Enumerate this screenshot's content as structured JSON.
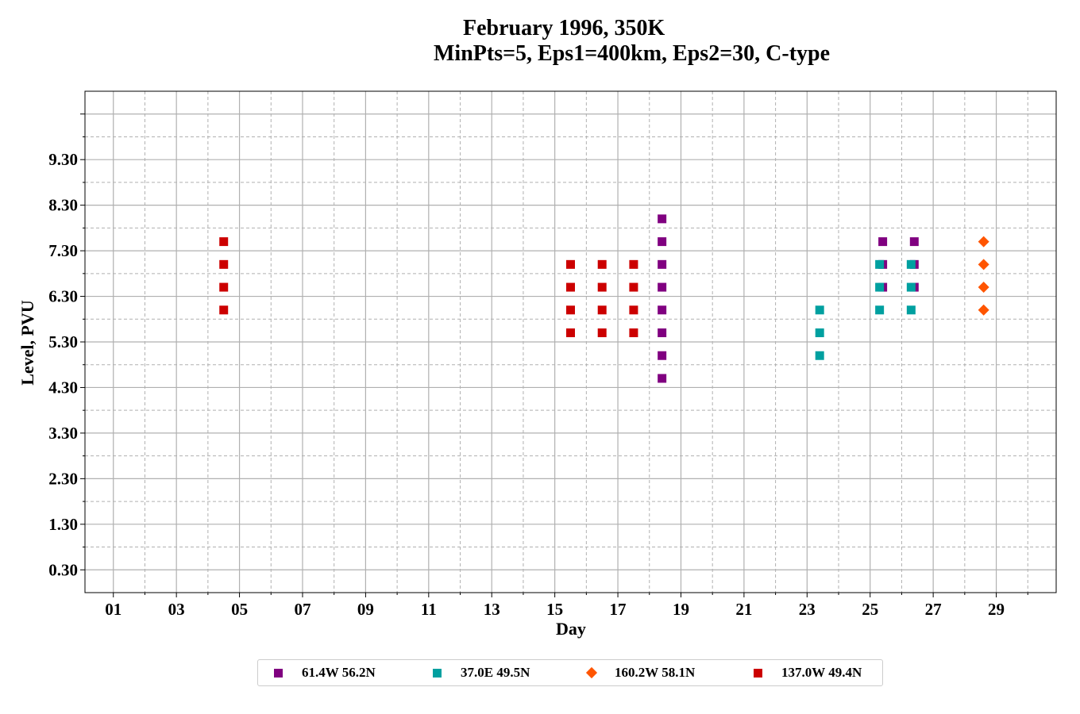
{
  "chart_data": {
    "type": "scatter",
    "title": "February 1996, 350K",
    "subtitle": "MinPts=5, Eps1=400km, Eps2=30, C-type",
    "xlabel": "Day",
    "ylabel": "Level, PVU",
    "xlim": [
      0.1,
      30.9
    ],
    "ylim": [
      -0.2,
      10.8
    ],
    "x_ticks": [
      "01",
      "03",
      "05",
      "07",
      "09",
      "11",
      "13",
      "15",
      "17",
      "19",
      "21",
      "23",
      "25",
      "27",
      "29"
    ],
    "y_ticks": [
      "0.30",
      "1.30",
      "2.30",
      "3.30",
      "4.30",
      "5.30",
      "6.30",
      "7.30",
      "8.30",
      "9.30"
    ],
    "grid": true,
    "legend_position": "bottom",
    "series": [
      {
        "name": "61.4W 56.2N",
        "marker": "square",
        "color": "#800080",
        "points": [
          [
            18.4,
            4.5
          ],
          [
            18.4,
            5.0
          ],
          [
            18.4,
            5.5
          ],
          [
            18.4,
            6.0
          ],
          [
            18.4,
            6.5
          ],
          [
            18.4,
            7.0
          ],
          [
            18.4,
            7.5
          ],
          [
            18.4,
            8.0
          ],
          [
            25.4,
            6.5
          ],
          [
            25.4,
            7.0
          ],
          [
            25.4,
            7.5
          ],
          [
            26.4,
            6.5
          ],
          [
            26.4,
            7.0
          ],
          [
            26.4,
            7.5
          ]
        ]
      },
      {
        "name": "37.0E 49.5N",
        "marker": "square",
        "color": "#00A0A0",
        "points": [
          [
            23.4,
            5.0
          ],
          [
            23.4,
            5.5
          ],
          [
            23.4,
            6.0
          ],
          [
            25.3,
            6.0
          ],
          [
            25.3,
            6.5
          ],
          [
            25.3,
            7.0
          ],
          [
            26.3,
            6.0
          ],
          [
            26.3,
            6.5
          ],
          [
            26.3,
            7.0
          ]
        ]
      },
      {
        "name": "160.2W 58.1N",
        "marker": "diamond",
        "color": "#FF5500",
        "points": [
          [
            28.6,
            6.0
          ],
          [
            28.6,
            6.5
          ],
          [
            28.6,
            7.0
          ],
          [
            28.6,
            7.5
          ]
        ]
      },
      {
        "name": "137.0W 49.4N",
        "marker": "square",
        "color": "#CC0000",
        "points": [
          [
            4.5,
            6.0
          ],
          [
            4.5,
            6.5
          ],
          [
            4.5,
            7.0
          ],
          [
            4.5,
            7.5
          ],
          [
            15.5,
            5.5
          ],
          [
            15.5,
            6.0
          ],
          [
            15.5,
            6.5
          ],
          [
            15.5,
            7.0
          ],
          [
            16.5,
            5.5
          ],
          [
            16.5,
            6.0
          ],
          [
            16.5,
            6.5
          ],
          [
            16.5,
            7.0
          ],
          [
            17.5,
            5.5
          ],
          [
            17.5,
            6.0
          ],
          [
            17.5,
            6.5
          ],
          [
            17.5,
            7.0
          ]
        ]
      }
    ]
  }
}
